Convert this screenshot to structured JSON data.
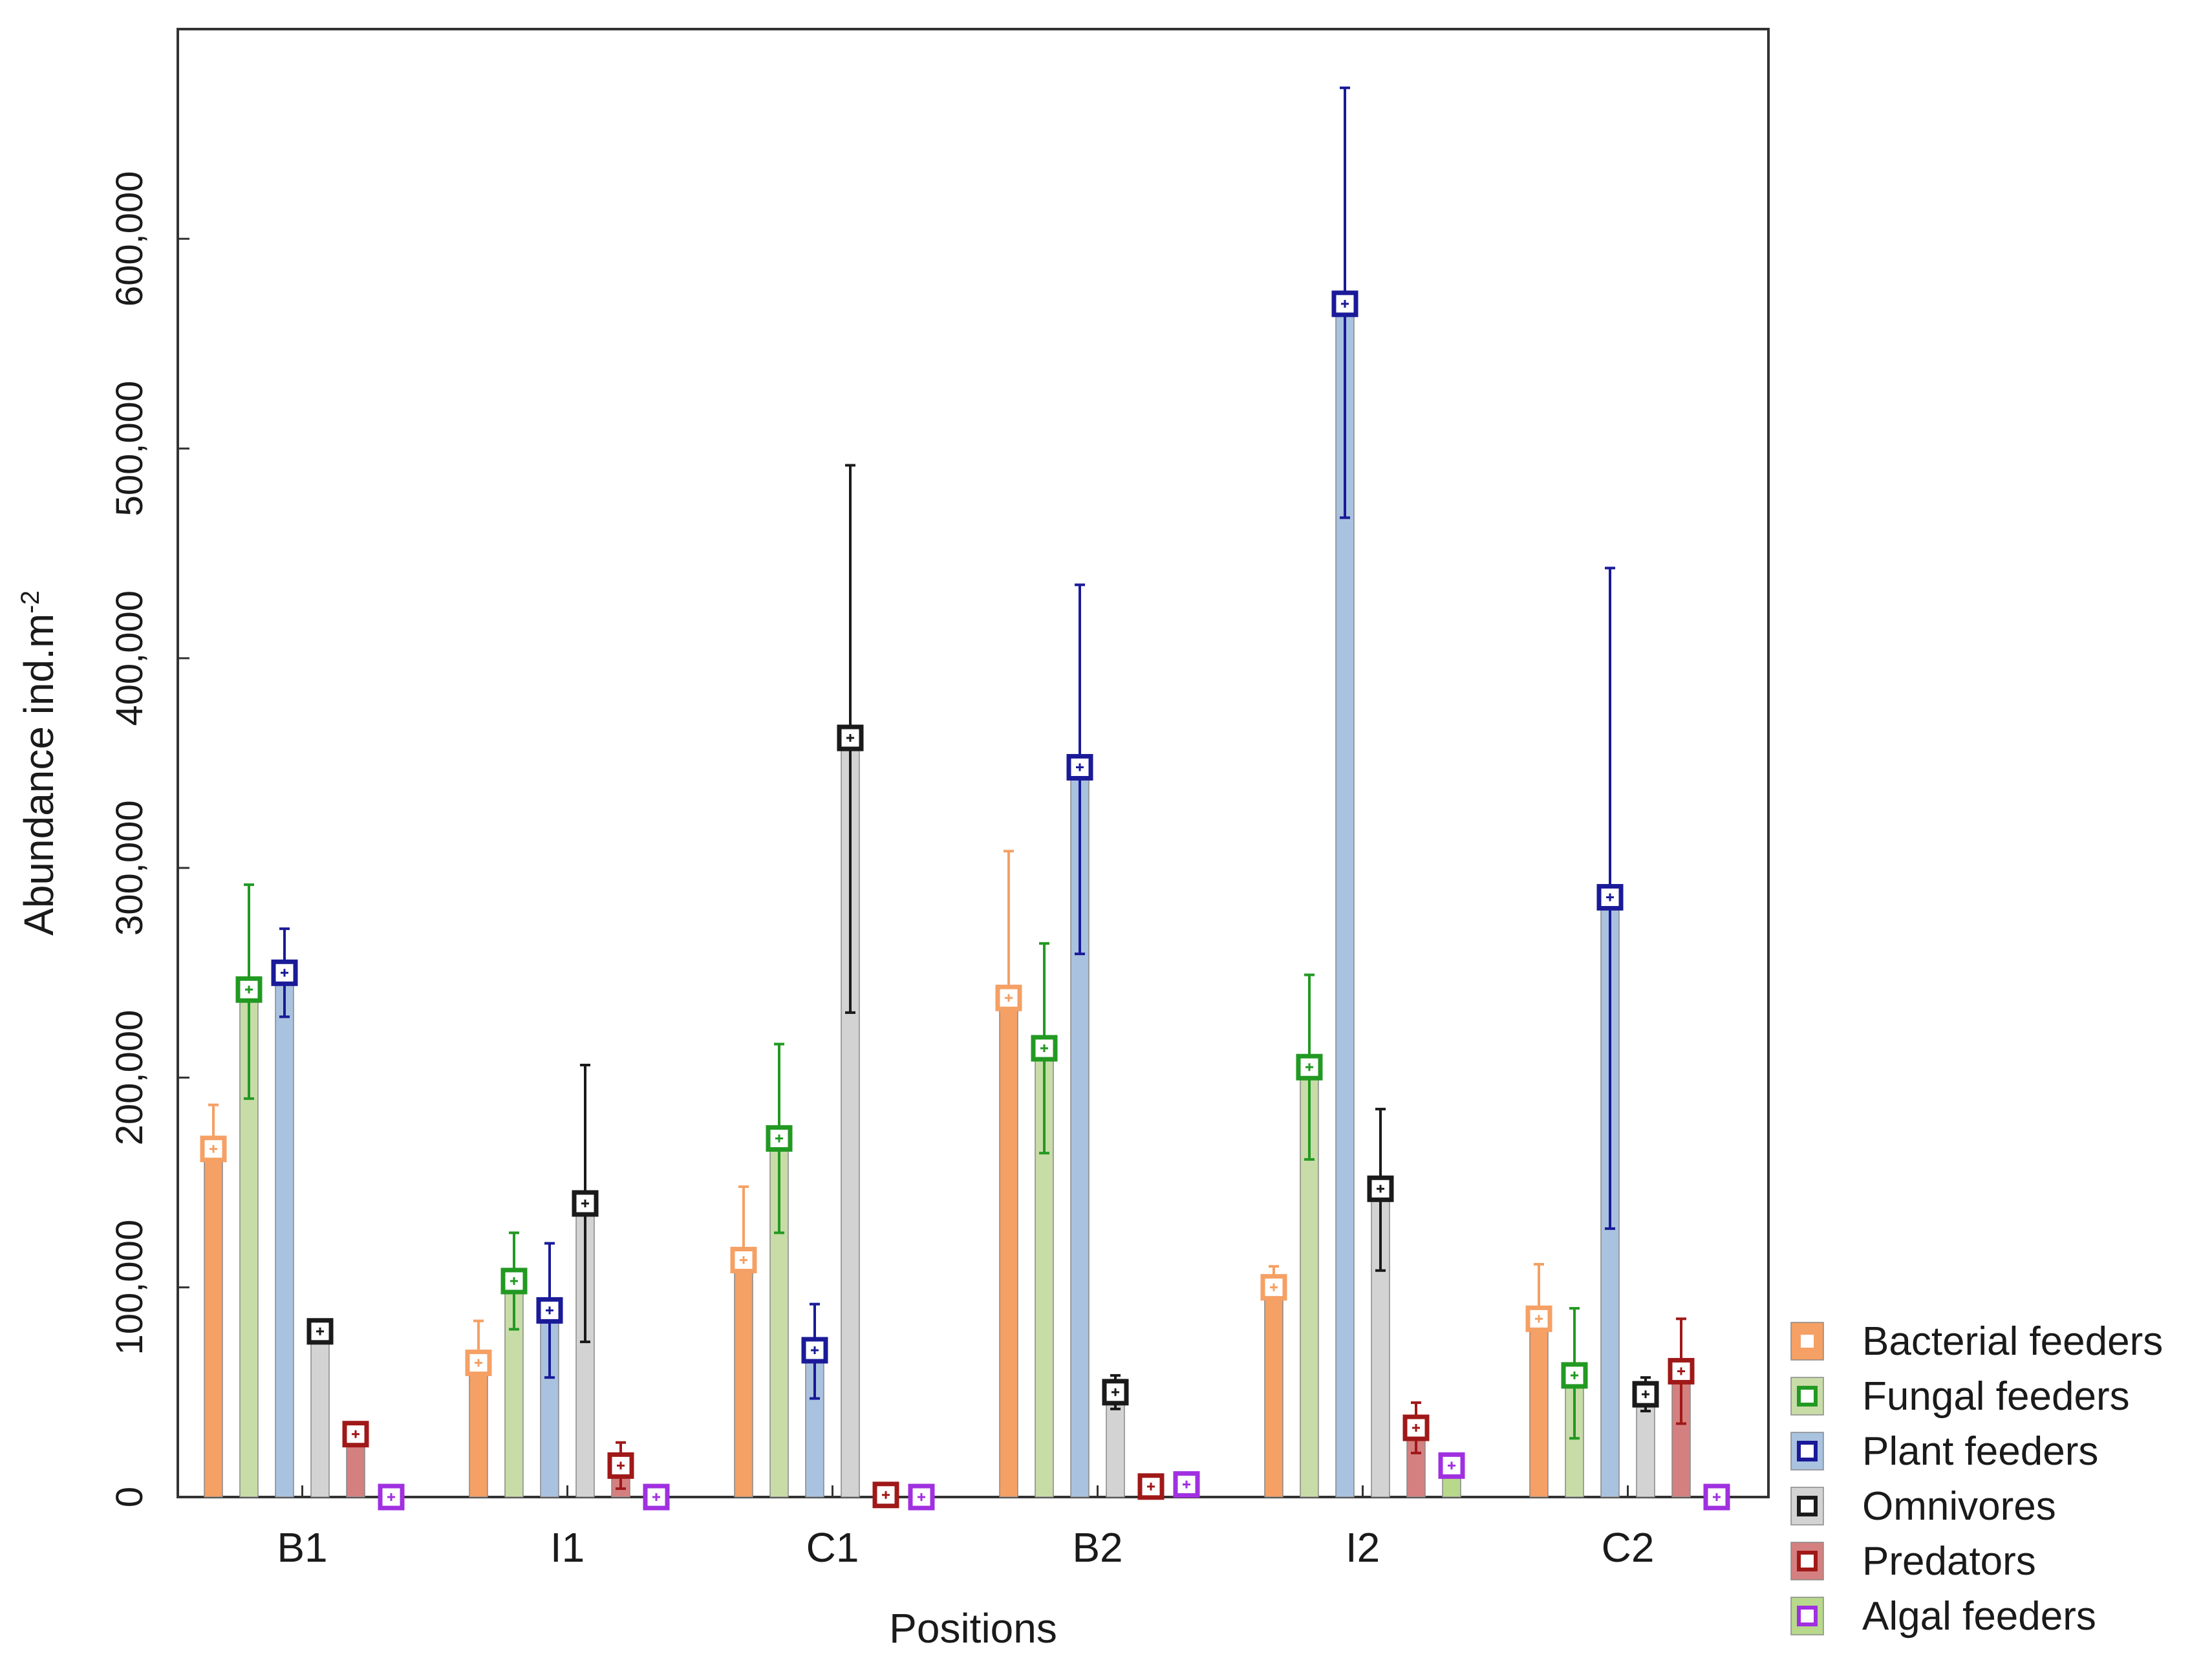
{
  "chart_data": {
    "type": "bar",
    "title": "",
    "xlabel": "Positions",
    "ylabel": "Abundance ind.m",
    "ylabel_superscript": "-2",
    "ylim": [
      0,
      700000
    ],
    "yticks": [
      0,
      100000,
      200000,
      300000,
      400000,
      500000,
      600000
    ],
    "ytick_labels": [
      "0",
      "100,000",
      "200,000",
      "300,000",
      "400,000",
      "500,000",
      "600,000"
    ],
    "categories": [
      "B1",
      "I1",
      "C1",
      "B2",
      "I2",
      "C2"
    ],
    "legend_position": "bottom-right outside",
    "series": [
      {
        "name": "Bacterial feeders",
        "color": "#F5A064",
        "marker_color": "#F5A064",
        "values": [
          166000,
          64000,
          113000,
          238000,
          100000,
          85000
        ],
        "lower": [
          143000,
          45000,
          78000,
          167000,
          90000,
          59000
        ],
        "upper": [
          187000,
          84000,
          148000,
          308000,
          110000,
          111000
        ]
      },
      {
        "name": "Fungal feeders",
        "color": "#C8DCA8",
        "marker_color": "#229922",
        "values": [
          242000,
          103000,
          171000,
          214000,
          205000,
          58000
        ],
        "lower": [
          190000,
          80000,
          126000,
          164000,
          161000,
          28000
        ],
        "upper": [
          292000,
          126000,
          216000,
          264000,
          249000,
          90000
        ]
      },
      {
        "name": "Plant feeders",
        "color": "#A9C2DF",
        "marker_color": "#1A1A99",
        "values": [
          250000,
          89000,
          70000,
          348000,
          569000,
          286000
        ],
        "lower": [
          229000,
          57000,
          47000,
          259000,
          467000,
          128000
        ],
        "upper": [
          271000,
          121000,
          92000,
          435000,
          672000,
          443000
        ]
      },
      {
        "name": "Omnivores",
        "color": "#D3D3D3",
        "marker_color": "#1A1A1A",
        "values": [
          79000,
          140000,
          362000,
          50000,
          147000,
          49000
        ],
        "lower": [
          74000,
          74000,
          231000,
          42000,
          108000,
          41000
        ],
        "upper": [
          84000,
          206000,
          492000,
          58000,
          185000,
          57000
        ]
      },
      {
        "name": "Predators",
        "color": "#D48080",
        "marker_color": "#A01818",
        "values": [
          30000,
          15000,
          1000,
          5000,
          33000,
          60000
        ],
        "lower": [
          25000,
          4000,
          0,
          3000,
          21000,
          35000
        ],
        "upper": [
          35000,
          26000,
          2000,
          7000,
          45000,
          85000
        ]
      },
      {
        "name": "Algal feeders",
        "color": "#B8D88C",
        "marker_color": "#A030E0",
        "values": [
          0,
          0,
          0,
          6000,
          15000,
          0
        ],
        "lower": [
          0,
          0,
          0,
          3000,
          10000,
          0
        ],
        "upper": [
          0,
          0,
          0,
          9000,
          20000,
          0
        ]
      }
    ]
  }
}
